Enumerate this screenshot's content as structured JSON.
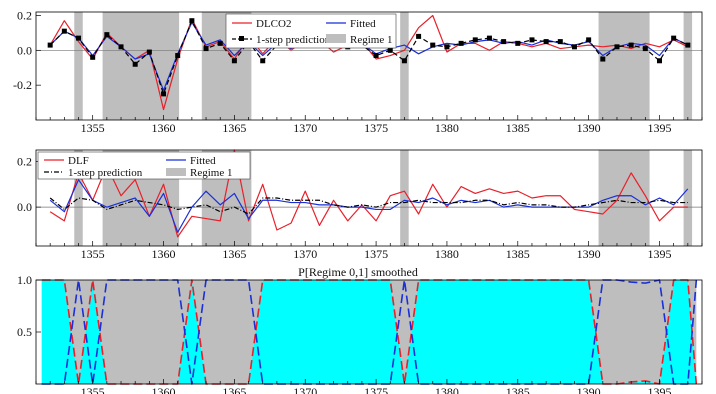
{
  "chart_data": [
    {
      "type": "line",
      "xlim": [
        1351,
        1398
      ],
      "ylim": [
        -0.4,
        0.22
      ],
      "xticks": [
        1355,
        1360,
        1365,
        1370,
        1375,
        1380,
        1385,
        1390,
        1395
      ],
      "xtick_labels": [
        "1355",
        "1360",
        "1365",
        "1370",
        "1375",
        "1380",
        "1385",
        "1390",
        "1395"
      ],
      "yticks": [
        -0.2,
        0.0,
        0.2
      ],
      "ytick_labels": [
        "-0.2",
        "0.0",
        "0.2"
      ],
      "shaded_regions": [
        [
          1353.7,
          1354.3
        ],
        [
          1355.7,
          1361.1
        ],
        [
          1362.7,
          1366.2
        ],
        [
          1376.7,
          1377.3
        ],
        [
          1390.7,
          1394.3
        ],
        [
          1396.7,
          1397.3
        ]
      ],
      "legend": [
        "DLCO2",
        "Fitted",
        "1-step prediction",
        "Regime 1"
      ],
      "legend_position": "top-center",
      "x": [
        1352,
        1353,
        1354,
        1355,
        1356,
        1357,
        1358,
        1359,
        1360,
        1361,
        1362,
        1363,
        1364,
        1365,
        1366,
        1367,
        1368,
        1369,
        1370,
        1371,
        1372,
        1373,
        1374,
        1375,
        1376,
        1377,
        1378,
        1379,
        1380,
        1381,
        1382,
        1383,
        1384,
        1385,
        1386,
        1387,
        1388,
        1389,
        1390,
        1391,
        1392,
        1393,
        1394,
        1395,
        1396,
        1397
      ],
      "series": [
        {
          "name": "DLCO2",
          "color": "#e8202a",
          "style": "solid",
          "markers": false,
          "values": [
            0.03,
            0.17,
            0.05,
            -0.05,
            0.1,
            0.02,
            -0.05,
            0.0,
            -0.34,
            -0.05,
            0.18,
            0.02,
            0.05,
            -0.05,
            0.08,
            -0.02,
            0.07,
            0.0,
            0.06,
            0.06,
            -0.01,
            0.03,
            0.05,
            -0.05,
            -0.03,
            0.0,
            0.13,
            0.2,
            -0.01,
            0.04,
            0.04,
            0.0,
            0.05,
            0.04,
            0.02,
            0.04,
            0.01,
            0.02,
            0.03,
            0.02,
            0.03,
            0.01,
            0.04,
            0.02,
            0.06,
            0.02
          ]
        },
        {
          "name": "Fitted",
          "color": "#1a2fd8",
          "style": "solid",
          "markers": false,
          "values": [
            0.03,
            0.11,
            0.07,
            -0.03,
            0.08,
            0.02,
            -0.05,
            -0.02,
            -0.23,
            -0.02,
            0.16,
            0.03,
            0.06,
            -0.03,
            0.05,
            -0.03,
            0.04,
            0.01,
            0.05,
            0.05,
            0.02,
            0.02,
            0.04,
            -0.02,
            0.01,
            0.03,
            -0.02,
            0.02,
            0.04,
            0.03,
            0.05,
            0.06,
            0.04,
            0.05,
            0.03,
            0.06,
            0.04,
            0.03,
            0.05,
            -0.03,
            0.02,
            0.04,
            0.03,
            -0.03,
            0.07,
            0.03
          ]
        },
        {
          "name": "1-step prediction",
          "color": "#000000",
          "style": "dashed",
          "markers": true,
          "values": [
            0.03,
            0.11,
            0.07,
            -0.04,
            0.09,
            0.02,
            -0.08,
            -0.01,
            -0.25,
            -0.03,
            0.17,
            0.01,
            0.04,
            -0.06,
            0.05,
            -0.06,
            0.03,
            0.03,
            0.04,
            0.04,
            0.03,
            0.02,
            0.03,
            -0.03,
            0.0,
            -0.06,
            0.08,
            0.03,
            0.02,
            0.04,
            0.06,
            0.07,
            0.05,
            0.04,
            0.06,
            0.05,
            0.05,
            0.02,
            0.06,
            -0.05,
            0.02,
            0.03,
            0.01,
            -0.06,
            0.07,
            0.03
          ]
        }
      ]
    },
    {
      "type": "line",
      "xlim": [
        1351,
        1398
      ],
      "ylim": [
        -0.17,
        0.25
      ],
      "xticks": [
        1355,
        1360,
        1365,
        1370,
        1375,
        1380,
        1385,
        1390,
        1395
      ],
      "xtick_labels": [
        "1355",
        "1360",
        "1365",
        "1370",
        "1375",
        "1380",
        "1385",
        "1390",
        "1395"
      ],
      "yticks": [
        0.0,
        0.2
      ],
      "ytick_labels": [
        "0.0",
        "0.2"
      ],
      "shaded_regions": [
        [
          1353.7,
          1354.3
        ],
        [
          1355.7,
          1361.1
        ],
        [
          1362.7,
          1366.2
        ],
        [
          1376.7,
          1377.3
        ],
        [
          1390.7,
          1394.3
        ],
        [
          1396.7,
          1397.3
        ]
      ],
      "legend": [
        "DLF",
        "Fitted",
        "1-step prediction",
        "Regime 1"
      ],
      "legend_position": "top-left",
      "x": [
        1352,
        1353,
        1354,
        1355,
        1356,
        1357,
        1358,
        1359,
        1360,
        1361,
        1362,
        1363,
        1364,
        1365,
        1366,
        1367,
        1368,
        1369,
        1370,
        1371,
        1372,
        1373,
        1374,
        1375,
        1376,
        1377,
        1378,
        1379,
        1380,
        1381,
        1382,
        1383,
        1384,
        1385,
        1386,
        1387,
        1388,
        1389,
        1390,
        1391,
        1392,
        1393,
        1394,
        1395,
        1396,
        1397
      ],
      "series": [
        {
          "name": "DLF",
          "color": "#e8202a",
          "style": "solid",
          "markers": false,
          "values": [
            -0.02,
            -0.06,
            0.15,
            0.03,
            0.18,
            0.05,
            0.12,
            -0.04,
            0.1,
            -0.13,
            -0.04,
            -0.05,
            -0.06,
            0.25,
            -0.06,
            0.1,
            -0.1,
            -0.07,
            0.07,
            -0.08,
            0.03,
            -0.06,
            0.01,
            -0.06,
            0.05,
            0.07,
            -0.03,
            0.1,
            0.0,
            0.09,
            0.06,
            0.08,
            0.06,
            0.07,
            0.04,
            0.05,
            0.05,
            -0.01,
            -0.02,
            -0.03,
            0.03,
            0.15,
            0.05,
            -0.06,
            0.0,
            0.0
          ]
        },
        {
          "name": "Fitted",
          "color": "#1a2fd8",
          "style": "solid",
          "markers": false,
          "values": [
            0.03,
            -0.02,
            0.12,
            0.03,
            0.0,
            0.02,
            0.04,
            -0.04,
            0.06,
            -0.11,
            0.0,
            0.07,
            0.01,
            0.06,
            -0.05,
            0.03,
            0.03,
            0.02,
            0.02,
            0.01,
            0.01,
            0.0,
            0.0,
            -0.01,
            -0.01,
            0.03,
            0.02,
            0.04,
            0.01,
            0.03,
            0.02,
            0.03,
            0.0,
            0.01,
            0.0,
            0.0,
            0.0,
            0.0,
            0.0,
            0.03,
            0.05,
            0.05,
            0.01,
            0.04,
            0.01,
            0.08
          ]
        },
        {
          "name": "1-step prediction",
          "color": "#000000",
          "style": "dashdot",
          "markers": false,
          "values": [
            0.04,
            -0.01,
            0.04,
            0.03,
            -0.01,
            0.01,
            0.03,
            0.02,
            0.01,
            -0.01,
            0.0,
            0.01,
            -0.02,
            0.0,
            -0.03,
            0.04,
            0.04,
            0.03,
            0.03,
            0.03,
            0.01,
            0.0,
            0.01,
            0.0,
            0.02,
            0.02,
            0.03,
            0.02,
            0.02,
            0.02,
            0.03,
            0.03,
            0.01,
            0.02,
            0.01,
            0.01,
            0.0,
            0.0,
            0.01,
            0.02,
            0.03,
            0.02,
            0.02,
            0.03,
            0.02,
            0.02
          ]
        }
      ]
    },
    {
      "type": "area",
      "title": "P[Regime 0,1] smoothed",
      "xlim": [
        1351,
        1398
      ],
      "ylim": [
        0,
        1.0
      ],
      "xticks": [
        1355,
        1360,
        1365,
        1370,
        1375,
        1380,
        1385,
        1390,
        1395
      ],
      "xtick_labels": [
        "1355",
        "1360",
        "1365",
        "1370",
        "1375",
        "1380",
        "1385",
        "1390",
        "1395"
      ],
      "yticks": [
        0.5,
        1.0
      ],
      "ytick_labels": [
        "0.5",
        "1.0"
      ],
      "x": [
        1351.4,
        1352,
        1353,
        1354,
        1355,
        1356,
        1357,
        1358,
        1359,
        1360,
        1361,
        1362,
        1363,
        1364,
        1365,
        1366,
        1367,
        1368,
        1369,
        1370,
        1371,
        1372,
        1373,
        1374,
        1375,
        1376,
        1377,
        1378,
        1379,
        1380,
        1381,
        1382,
        1383,
        1384,
        1385,
        1386,
        1387,
        1388,
        1389,
        1390,
        1391,
        1392,
        1393,
        1394,
        1395,
        1396,
        1397,
        1397.6
      ],
      "series": [
        {
          "name": "",
          "fill": "#00ffff",
          "line_color": "#e8202a",
          "style": "dashed",
          "values": [
            1,
            1,
            1,
            0,
            1,
            0,
            0,
            0,
            0,
            0,
            0,
            1,
            0,
            0,
            0,
            0,
            1,
            1,
            1,
            1,
            1,
            1,
            1,
            1,
            1,
            1,
            0,
            1,
            1,
            1,
            1,
            1,
            1,
            1,
            1,
            1,
            1,
            1,
            1,
            1,
            0,
            0,
            0.02,
            0.03,
            0,
            1,
            1,
            0
          ]
        },
        {
          "name": "",
          "fill": "#bebebe",
          "line_color": "#1a2fd8",
          "style": "dashed",
          "values": [
            0,
            0,
            0,
            1,
            0,
            1,
            1,
            1,
            1,
            1,
            1,
            0,
            1,
            1,
            1,
            1,
            0,
            0,
            0,
            0,
            0,
            0,
            0,
            0,
            0,
            0,
            1,
            0,
            0,
            0,
            0,
            0,
            0,
            0,
            0,
            0,
            0,
            0,
            0,
            0,
            1,
            1,
            0.98,
            0.97,
            1,
            0,
            0,
            1
          ]
        }
      ]
    }
  ]
}
